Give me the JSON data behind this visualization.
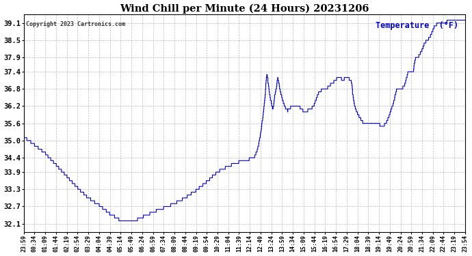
{
  "title": "Wind Chill per Minute (24 Hours) 20231206",
  "legend_label": "Temperature  (°F)",
  "copyright": "Copyright 2023 Cartronics.com",
  "background_color": "#ffffff",
  "plot_bg_color": "#ffffff",
  "line_color": "#0000cc",
  "legend_color": "#0000cc",
  "grid_color": "#aaaaaa",
  "ylim": [
    31.8,
    39.4
  ],
  "ytick_values": [
    32.1,
    32.7,
    33.3,
    33.9,
    34.4,
    35.0,
    35.6,
    36.2,
    36.8,
    37.4,
    37.9,
    38.5,
    39.1
  ],
  "x_labels": [
    "23:59",
    "00:34",
    "01:09",
    "01:44",
    "02:19",
    "02:54",
    "03:29",
    "04:04",
    "04:39",
    "05:14",
    "05:49",
    "06:24",
    "06:59",
    "07:34",
    "08:09",
    "08:44",
    "09:19",
    "09:54",
    "10:29",
    "11:04",
    "11:39",
    "12:14",
    "12:49",
    "13:24",
    "13:59",
    "14:34",
    "15:09",
    "15:44",
    "16:19",
    "16:54",
    "17:29",
    "18:04",
    "18:39",
    "19:14",
    "19:49",
    "20:24",
    "20:59",
    "21:34",
    "22:09",
    "22:44",
    "23:19",
    "23:54"
  ]
}
